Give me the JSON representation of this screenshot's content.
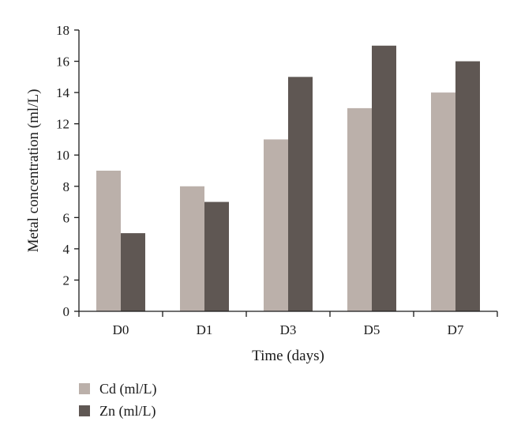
{
  "chart_data": {
    "type": "bar",
    "title": "",
    "xlabel": "Time (days)",
    "ylabel": "Metal concentration (ml/L)",
    "categories": [
      "D0",
      "D1",
      "D3",
      "D5",
      "D7"
    ],
    "series": [
      {
        "name": "Cd (ml/L)",
        "values": [
          9,
          8,
          11,
          13,
          14
        ],
        "color": "#bbb0aa"
      },
      {
        "name": "Zn (ml/L)",
        "values": [
          5,
          7,
          15,
          17,
          16
        ],
        "color": "#5f5753"
      }
    ],
    "ylim": [
      0,
      18
    ],
    "yticks": [
      0,
      2,
      4,
      6,
      8,
      10,
      12,
      14,
      16,
      18
    ],
    "grid": false,
    "legend_position": "bottom-left"
  }
}
